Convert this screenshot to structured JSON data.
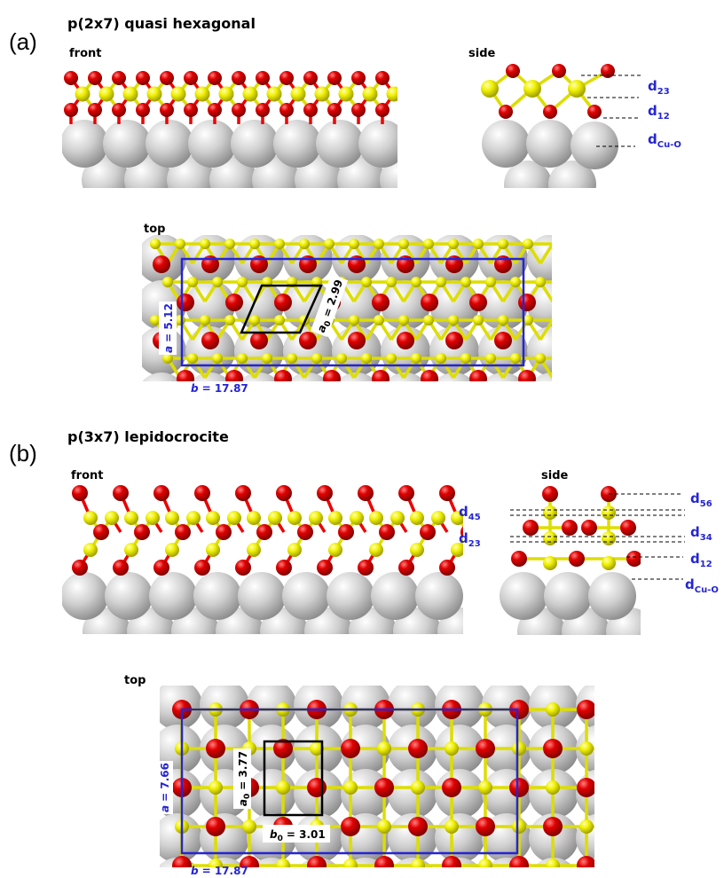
{
  "panels": [
    {
      "label": "(a)",
      "title": "p(2x7) quasi hexagonal",
      "front": {
        "title": "front"
      },
      "side": {
        "title": "side",
        "distances": [
          {
            "symbol": "d",
            "sub": "23"
          },
          {
            "symbol": "d",
            "sub": "12"
          },
          {
            "symbol": "d",
            "sub": "Cu-O"
          }
        ]
      },
      "top": {
        "title": "top",
        "a": {
          "symbol": "a",
          "value": "= 5.12"
        },
        "a0": {
          "symbol": "a",
          "sub": "0",
          "value": "= 2.99"
        },
        "b": {
          "symbol": "b",
          "value": "= 17.87"
        }
      }
    },
    {
      "label": "(b)",
      "title": "p(3x7) lepidocrocite",
      "front": {
        "title": "front"
      },
      "side": {
        "title": "side",
        "distances": [
          {
            "symbol": "d",
            "sub": "56"
          },
          {
            "symbol": "d",
            "sub": "45"
          },
          {
            "symbol": "d",
            "sub": "34"
          },
          {
            "symbol": "d",
            "sub": "23"
          },
          {
            "symbol": "d",
            "sub": "12"
          },
          {
            "symbol": "d",
            "sub": "Cu-O"
          }
        ]
      },
      "top": {
        "title": "top",
        "a": {
          "symbol": "a",
          "value": "= 7.66"
        },
        "a0": {
          "symbol": "a",
          "sub": "0",
          "value": "= 3.77"
        },
        "b0": {
          "symbol": "b",
          "sub": "0",
          "value": "= 3.01"
        },
        "b": {
          "symbol": "b",
          "value": "= 17.87"
        }
      }
    }
  ]
}
